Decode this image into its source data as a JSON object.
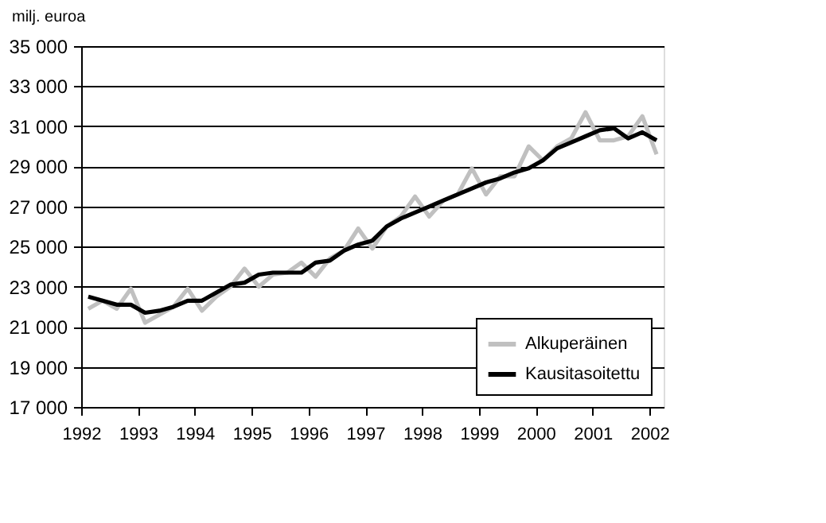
{
  "chart_data": {
    "type": "line",
    "ylabel": "milj. euroa",
    "x": [
      1992.125,
      1992.375,
      1992.625,
      1992.875,
      1993.125,
      1993.375,
      1993.625,
      1993.875,
      1994.125,
      1994.375,
      1994.625,
      1994.875,
      1995.125,
      1995.375,
      1995.625,
      1995.875,
      1996.125,
      1996.375,
      1996.625,
      1996.875,
      1997.125,
      1997.375,
      1997.625,
      1997.875,
      1998.125,
      1998.375,
      1998.625,
      1998.875,
      1999.125,
      1999.375,
      1999.625,
      1999.875,
      2000.125,
      2000.375,
      2000.625,
      2000.875,
      2001.125,
      2001.375,
      2001.625,
      2001.875,
      2002.125
    ],
    "series": [
      {
        "name": "Alkuperäinen",
        "color": "#c0c0c0",
        "values": [
          21900,
          22300,
          21900,
          22900,
          21200,
          21600,
          22000,
          22900,
          21800,
          22500,
          23000,
          23900,
          23000,
          23600,
          23700,
          24200,
          23500,
          24400,
          24800,
          25900,
          24900,
          26000,
          26500,
          27500,
          26500,
          27300,
          27600,
          28900,
          27600,
          28500,
          28500,
          30000,
          29300,
          30000,
          30400,
          31700,
          30300,
          30300,
          30500,
          31500,
          29600
        ]
      },
      {
        "name": "Kausitasoitettu",
        "color": "#000000",
        "values": [
          22500,
          22300,
          22100,
          22100,
          21700,
          21800,
          22000,
          22300,
          22300,
          22700,
          23100,
          23200,
          23600,
          23700,
          23700,
          23700,
          24200,
          24300,
          24800,
          25100,
          25300,
          26000,
          26400,
          26700,
          27000,
          27300,
          27600,
          27900,
          28200,
          28400,
          28700,
          28900,
          29300,
          29900,
          30200,
          30500,
          30800,
          30900,
          30400,
          30700,
          30300
        ]
      }
    ],
    "xlim": [
      1992,
      2002.25
    ],
    "xticks": [
      1992,
      1993,
      1994,
      1995,
      1996,
      1997,
      1998,
      1999,
      2000,
      2001,
      2002
    ],
    "ylim": [
      17000,
      35000
    ],
    "yticks": [
      {
        "value": 17000,
        "label": "17 000"
      },
      {
        "value": 19000,
        "label": "19 000"
      },
      {
        "value": 21000,
        "label": "21 000"
      },
      {
        "value": 23000,
        "label": "23 000"
      },
      {
        "value": 25000,
        "label": "25 000"
      },
      {
        "value": 27000,
        "label": "27 000"
      },
      {
        "value": 29000,
        "label": "29 000"
      },
      {
        "value": 31000,
        "label": "31 000"
      },
      {
        "value": 33000,
        "label": "33 000"
      },
      {
        "value": 35000,
        "label": "35 000"
      }
    ],
    "grid": "y",
    "legend": "bottom right",
    "line_style": "solid",
    "marker": "none"
  }
}
